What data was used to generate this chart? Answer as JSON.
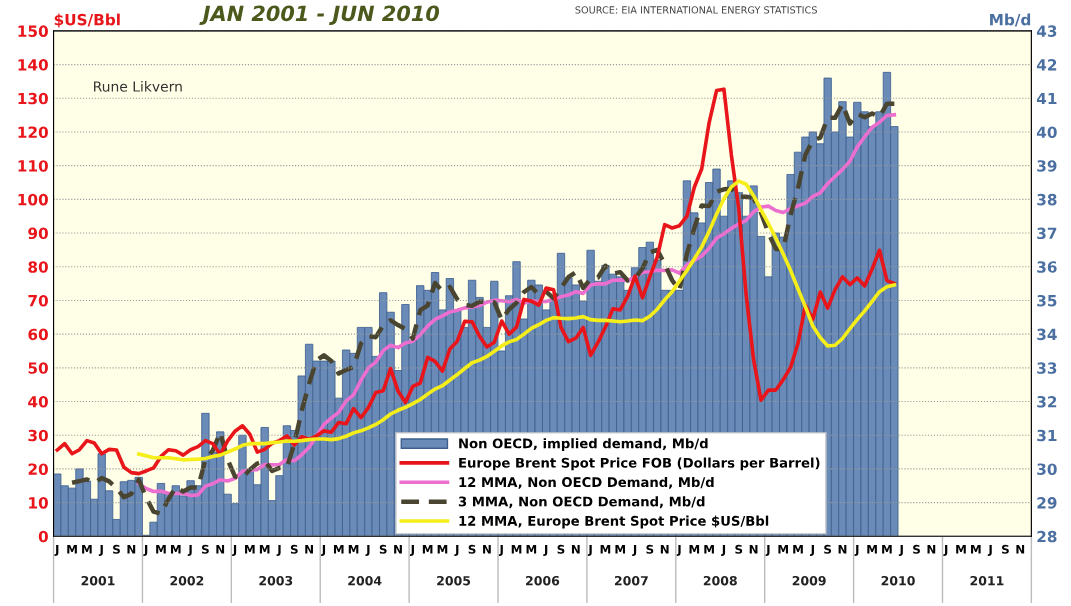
{
  "chart_data": {
    "type": "bar",
    "title": "JAN 2001 - JUN 2010",
    "ylabel": "$US/Bbl",
    "y2label": "Mb/d",
    "annotations": [
      "Rune Likvern",
      "SOURCE: EIA INTERNATIONAL ENERGY STATISTICS",
      "2001",
      "2002",
      "2003",
      "2004",
      "2005",
      "2006",
      "2007",
      "2008",
      "2009",
      "2010",
      "2011"
    ],
    "categories": [
      "J",
      null,
      "M",
      null,
      "M",
      null,
      "J",
      null,
      "S",
      null,
      "N",
      null,
      "J",
      null,
      "M",
      null,
      "M",
      null,
      "J",
      null,
      "S",
      null,
      "N",
      null,
      "J",
      null,
      "M",
      null,
      "M",
      null,
      "J",
      null,
      "S",
      null,
      "N",
      null,
      "J",
      null,
      "M",
      null,
      "M",
      null,
      "J",
      null,
      "S",
      null,
      "N",
      null,
      "J",
      null,
      "M",
      null,
      "M",
      null,
      "J",
      null,
      "S",
      null,
      "N",
      null,
      "J",
      null,
      "M",
      null,
      "M",
      null,
      "J",
      null,
      "S",
      null,
      "N",
      null,
      "J",
      null,
      "M",
      null,
      "M",
      null,
      "J",
      null,
      "S",
      null,
      "N",
      null,
      "J",
      null,
      "M",
      null,
      "M",
      null,
      "J",
      null,
      "S",
      null,
      "N",
      null,
      "J",
      null,
      "M",
      null,
      "M",
      null,
      "J",
      null,
      "S",
      null,
      "N",
      null,
      "J",
      null,
      "M",
      null,
      "M",
      null,
      "J",
      null,
      "S",
      null,
      "N",
      null,
      "J",
      null,
      "M",
      null,
      "M",
      null,
      "J",
      null,
      "S",
      null,
      "N",
      null
    ],
    "ylim": [
      0,
      150
    ],
    "yticks": [
      0,
      10,
      20,
      30,
      40,
      50,
      60,
      70,
      80,
      90,
      100,
      110,
      120,
      130,
      140,
      150
    ],
    "y2lim": [
      28,
      43
    ],
    "y2ticks": [
      28,
      29,
      30,
      31,
      32,
      33,
      34,
      35,
      36,
      37,
      38,
      39,
      40,
      41,
      42,
      43
    ],
    "grid": "y",
    "legend": "bottom",
    "marker": "none",
    "series": [
      {
        "name": "Non OECD, implied demand, Mb/d",
        "axis": "y2",
        "color": "#6a8bb8",
        "values": [
          29.85,
          29.5,
          29.43,
          30,
          29.64,
          29.1,
          30.45,
          29.35,
          28.5,
          29.62,
          29.66,
          29.75,
          28.03,
          28.42,
          29.57,
          29.3,
          29.5,
          29.2,
          29.65,
          29.5,
          31.65,
          30.5,
          31.1,
          29.25,
          28.97,
          31,
          29.96,
          29.53,
          31.23,
          29.06,
          29.8,
          31.28,
          31.14,
          32.76,
          33.7,
          33.2,
          33.2,
          33.2,
          32.1,
          33.53,
          33.43,
          34.2,
          34.2,
          33.34,
          35.23,
          34.65,
          32.92,
          34.88,
          33.8,
          35.44,
          35.3,
          35.83,
          34.72,
          35.65,
          34.72,
          34.2,
          35.6,
          35.09,
          34.2,
          35.57,
          33.5,
          35.14,
          36.15,
          34.45,
          35.6,
          35.46,
          34.72,
          35,
          36.4,
          35.67,
          35.46,
          34.98,
          36.49,
          35.57,
          36.04,
          35.78,
          35.7,
          35.3,
          35.97,
          36.57,
          36.73,
          36.2,
          35.3,
          35.3,
          35.3,
          38.55,
          37.6,
          37.3,
          38.5,
          38.9,
          37.5,
          38.55,
          38.2,
          37.5,
          38.4,
          36.9,
          35.7,
          37,
          36.88,
          38.74,
          39.4,
          39.85,
          40,
          39.65,
          41.6,
          40,
          40.9,
          39.85,
          40.88,
          40.6,
          40.16,
          40.6,
          41.77,
          40.16,
          null,
          null,
          null,
          null,
          null,
          null,
          null,
          null,
          null,
          null,
          null,
          null,
          null,
          null,
          null,
          null,
          null,
          null
        ]
      },
      {
        "name": "Europe Brent Spot Price FOB (Dollars per Barrel)",
        "type": "line",
        "axis": "y",
        "color": "#e8151b",
        "line_style": "solid",
        "values": [
          25.6,
          27.5,
          24.5,
          25.7,
          28.4,
          27.7,
          24.5,
          25.8,
          25.6,
          20.5,
          18.9,
          18.6,
          19.4,
          20.3,
          23.7,
          25.7,
          25.4,
          24.1,
          25.7,
          26.6,
          28.4,
          27.5,
          24.3,
          28.3,
          31.2,
          32.8,
          30.3,
          25.0,
          25.8,
          27.6,
          28.4,
          29.8,
          27.1,
          29.6,
          28.8,
          29.8,
          31.3,
          30.9,
          33.8,
          33.4,
          37.9,
          35.2,
          38.2,
          42.7,
          43.2,
          49.8,
          43.1,
          39.7,
          44.5,
          45.5,
          53.1,
          51.9,
          49.0,
          55.6,
          57.9,
          63.8,
          63.7,
          59.4,
          56.2,
          57.6,
          63.9,
          60.0,
          62.1,
          70.3,
          69.8,
          68.6,
          73.7,
          73.2,
          62.0,
          57.8,
          58.8,
          62.0,
          53.7,
          57.6,
          62.1,
          67.5,
          67.2,
          71.3,
          77.2,
          70.8,
          77.1,
          82.9,
          92.5,
          91.5,
          92.2,
          95.0,
          103.6,
          109.1,
          122.8,
          132.3,
          132.7,
          113.2,
          97.2,
          71.6,
          52.5,
          40.4,
          43.4,
          43.4,
          46.5,
          50.2,
          57.3,
          68.6,
          64.4,
          72.5,
          67.7,
          73.2,
          77.0,
          74.7,
          76.7,
          74.3,
          79.3,
          84.9,
          75.9,
          75.0,
          null,
          null,
          null,
          null,
          null,
          null,
          null,
          null,
          null,
          null,
          null,
          null,
          null,
          null,
          null,
          null,
          null,
          null
        ]
      },
      {
        "name": "12 MMA, Non OECD Demand, Mb/d",
        "type": "line",
        "axis": "y2",
        "color": "#ec6fd0",
        "line_style": "solid",
        "values": [
          null,
          null,
          null,
          null,
          null,
          null,
          null,
          null,
          null,
          null,
          null,
          29.57,
          29.42,
          29.33,
          29.34,
          29.28,
          29.27,
          29.28,
          29.21,
          29.23,
          29.49,
          29.56,
          29.68,
          29.64,
          29.72,
          29.93,
          29.97,
          29.98,
          30.13,
          30.12,
          30.13,
          30.28,
          30.24,
          30.42,
          30.64,
          30.97,
          31.32,
          31.51,
          31.68,
          32.02,
          32.2,
          32.63,
          33,
          33.17,
          33.51,
          33.67,
          33.6,
          33.74,
          33.79,
          33.98,
          34.24,
          34.44,
          34.54,
          34.66,
          34.71,
          34.78,
          34.81,
          34.85,
          34.95,
          35.01,
          34.99,
          34.96,
          35.03,
          34.92,
          34.99,
          34.97,
          34.97,
          35.04,
          35.11,
          35.16,
          35.26,
          35.21,
          35.46,
          35.5,
          35.49,
          35.6,
          35.61,
          35.59,
          35.7,
          35.83,
          35.86,
          35.9,
          35.89,
          35.91,
          35.81,
          36.06,
          36.19,
          36.32,
          36.55,
          36.85,
          36.98,
          37.14,
          37.27,
          37.38,
          37.63,
          37.77,
          37.8,
          37.67,
          37.61,
          37.73,
          37.81,
          37.89,
          38.09,
          38.19,
          38.47,
          38.68,
          38.89,
          39.13,
          39.56,
          39.86,
          40.14,
          40.29,
          40.49,
          40.51,
          null,
          null,
          null,
          null,
          null,
          null,
          null,
          null,
          null,
          null,
          null,
          null,
          null,
          null,
          null,
          null,
          null,
          null
        ]
      },
      {
        "name": "3 MMA, Non OECD Demand, Mb/d",
        "type": "line",
        "axis": "y2",
        "color": "#4a4530",
        "line_style": "dashed",
        "values": [
          null,
          null,
          29.59,
          29.64,
          29.69,
          29.58,
          29.73,
          29.63,
          29.43,
          29.16,
          29.26,
          29.68,
          29.15,
          28.73,
          28.67,
          29.1,
          29.46,
          29.33,
          29.45,
          29.45,
          30.27,
          30.55,
          31.08,
          30.28,
          29.77,
          29.74,
          29.98,
          30.16,
          30.24,
          29.94,
          30.03,
          30.05,
          30.74,
          31.73,
          32.53,
          33.22,
          33.37,
          33.2,
          32.83,
          32.94,
          33.02,
          33.72,
          33.94,
          33.91,
          34.26,
          34.41,
          34.27,
          34.15,
          33.87,
          34.71,
          34.85,
          35.52,
          35.28,
          35.4,
          35.03,
          34.86,
          34.84,
          34.96,
          34.96,
          34.95,
          34.42,
          34.74,
          34.93,
          35.25,
          35.4,
          35.17,
          35.26,
          35.06,
          35.37,
          35.69,
          35.84,
          35.37,
          35.64,
          35.68,
          36.03,
          35.8,
          35.84,
          35.59,
          35.66,
          35.95,
          36.42,
          36.5,
          36.08,
          35.6,
          35.3,
          36.38,
          37.15,
          37.82,
          37.8,
          38.23,
          38.3,
          38.32,
          38.08,
          38.08,
          38.03,
          37.6,
          37,
          36.53,
          36.53,
          37.54,
          38.34,
          39.33,
          39.75,
          39.83,
          40.42,
          40.42,
          40.83,
          40.25,
          40.54,
          40.44,
          40.55,
          40.45,
          40.84,
          40.84,
          null,
          null,
          null,
          null,
          null,
          null,
          null,
          null,
          null,
          null,
          null,
          null,
          null,
          null,
          null,
          null,
          null,
          null
        ]
      },
      {
        "name": "12 MMA, Europe Brent Spot Price $US/Bbl",
        "type": "line",
        "axis": "y",
        "color": "#f5ee1a",
        "line_style": "solid",
        "values": [
          null,
          null,
          null,
          null,
          null,
          null,
          null,
          null,
          null,
          null,
          null,
          24.4,
          23.9,
          23.3,
          23.3,
          23.3,
          23.0,
          22.7,
          22.8,
          22.9,
          23.1,
          23.7,
          24.1,
          25.0,
          25.9,
          27.0,
          27.5,
          27.5,
          27.5,
          27.8,
          28.0,
          28.3,
          28.2,
          28.4,
          28.7,
          28.9,
          28.9,
          28.7,
          29.0,
          29.7,
          30.7,
          31.3,
          32.2,
          33.2,
          34.6,
          36.3,
          37.4,
          38.3,
          39.4,
          40.6,
          42.2,
          43.7,
          44.7,
          46.4,
          48.0,
          49.8,
          51.5,
          52.3,
          53.4,
          54.9,
          56.5,
          57.7,
          58.4,
          60.0,
          61.7,
          62.8,
          64.1,
          64.9,
          64.7,
          64.6,
          64.8,
          65.2,
          64.3,
          64.1,
          64.1,
          63.9,
          63.7,
          63.9,
          64.2,
          64.0,
          65.3,
          67.4,
          70.2,
          72.6,
          75.8,
          78.9,
          82.4,
          85.9,
          90.5,
          95.6,
          100.2,
          103.7,
          105.4,
          104.5,
          101.1,
          96.9,
          92.8,
          88.5,
          83.8,
          78.9,
          73.4,
          68.1,
          62.4,
          59.0,
          56.5,
          56.7,
          58.7,
          61.6,
          64.4,
          66.9,
          69.7,
          72.6,
          74.1,
          74.6,
          null,
          null,
          null,
          null,
          null,
          null,
          null,
          null,
          null,
          null,
          null,
          null,
          null,
          null,
          null,
          null,
          null,
          null
        ]
      }
    ]
  }
}
